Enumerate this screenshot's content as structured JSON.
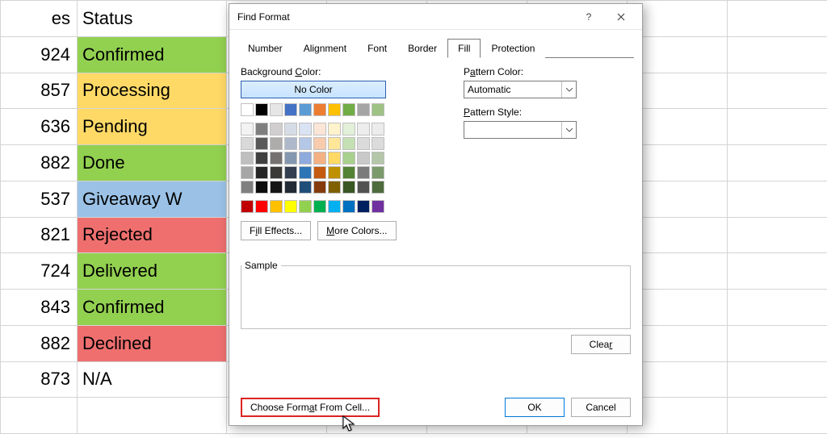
{
  "sheet": {
    "header_col1": "es",
    "header_col2": "Status",
    "rows": [
      {
        "num": "924",
        "status": "Confirmed",
        "cls": "c-green"
      },
      {
        "num": "857",
        "status": "Processing",
        "cls": "c-yellow"
      },
      {
        "num": "636",
        "status": "Pending",
        "cls": "c-yellow"
      },
      {
        "num": "882",
        "status": "Done",
        "cls": "c-green"
      },
      {
        "num": "537",
        "status": "Giveaway W",
        "cls": "c-blue"
      },
      {
        "num": "821",
        "status": "Rejected",
        "cls": "c-red"
      },
      {
        "num": "724",
        "status": "Delivered",
        "cls": "c-green"
      },
      {
        "num": "843",
        "status": "Confirmed",
        "cls": "c-green"
      },
      {
        "num": "882",
        "status": "Declined",
        "cls": "c-red"
      },
      {
        "num": "873",
        "status": "N/A",
        "cls": "c-white"
      }
    ]
  },
  "dialog": {
    "title": "Find Format",
    "tabs": [
      "Number",
      "Alignment",
      "Font",
      "Border",
      "Fill",
      "Protection"
    ],
    "active_tab": "Fill",
    "bg_color_label_pre": "Background ",
    "bg_color_label_u": "C",
    "bg_color_label_post": "olor:",
    "no_color": "No Color",
    "fill_effects_pre": "Fill Effects",
    "fill_effects_u": "...",
    "more_colors_u": "M",
    "more_colors_post": "ore Colors...",
    "pattern_color_pre": "P",
    "pattern_color_u": "a",
    "pattern_color_post": "ttern Color:",
    "pattern_color_value": "Automatic",
    "pattern_style_u": "P",
    "pattern_style_post": "attern Style:",
    "sample_label": "Sample",
    "clear_label": "Clear",
    "choose_fmt_pre": "Choose Form",
    "choose_fmt_u": "a",
    "choose_fmt_post": "t From Cell...",
    "ok": "OK",
    "cancel": "Cancel"
  },
  "palette": {
    "row1": [
      "#ffffff",
      "#000000",
      "#e7e6e6",
      "#4472c4",
      "#5b9bd5",
      "#ed7d31",
      "#ffc000",
      "#70ad47",
      "#a5a5a5",
      "#9dc284"
    ],
    "theme": [
      [
        "#f2f2f2",
        "#7f7f7f",
        "#d0cece",
        "#d6dce5",
        "#dae3f3",
        "#fbe5d6",
        "#fff2cc",
        "#e2f0d9",
        "#ededed",
        "#ececec"
      ],
      [
        "#d9d9d9",
        "#595959",
        "#aeabab",
        "#adb9ca",
        "#b4c7e7",
        "#f8cbad",
        "#ffe699",
        "#c5e0b4",
        "#dbdbdb",
        "#dbdbdb"
      ],
      [
        "#bfbfbf",
        "#404040",
        "#757171",
        "#8497b0",
        "#8faadc",
        "#f4b184",
        "#ffd966",
        "#a9d18e",
        "#c9c9c9",
        "#b4c7a9"
      ],
      [
        "#a6a6a6",
        "#262626",
        "#3b3838",
        "#333f50",
        "#2e75b6",
        "#c55a11",
        "#bf9000",
        "#548235",
        "#7b7b7b",
        "#7b9a6c"
      ],
      [
        "#808080",
        "#0d0d0d",
        "#161616",
        "#222a35",
        "#1f4e79",
        "#843c0c",
        "#806000",
        "#385723",
        "#525252",
        "#4e6b3d"
      ]
    ],
    "standard": [
      "#c00000",
      "#ff0000",
      "#ffc000",
      "#ffff00",
      "#92d050",
      "#00b050",
      "#00b0f0",
      "#0070c0",
      "#002060",
      "#7030a0"
    ]
  }
}
